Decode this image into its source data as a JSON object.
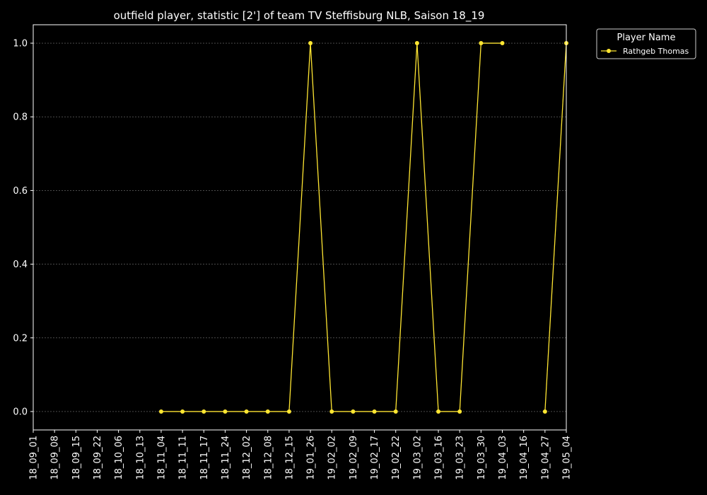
{
  "chart_data": {
    "type": "line",
    "title": "outfield player, statistic [2'] of team TV Steffisburg NLB, Saison 18_19",
    "xlabel": "",
    "ylabel": "",
    "ylim": [
      -0.05,
      1.05
    ],
    "y_ticks": [
      0.0,
      0.2,
      0.4,
      0.6,
      0.8,
      1.0
    ],
    "y_tick_labels": [
      "0.0",
      "0.2",
      "0.4",
      "0.6",
      "0.8",
      "1.0"
    ],
    "grid": true,
    "legend": {
      "title": "Player Name",
      "placement": "outside-top-right"
    },
    "categories": [
      "18_09_01",
      "18_09_08",
      "18_09_15",
      "18_09_22",
      "18_10_06",
      "18_10_13",
      "18_11_04",
      "18_11_11",
      "18_11_17",
      "18_11_24",
      "18_12_02",
      "18_12_08",
      "18_12_15",
      "19_01_26",
      "19_02_02",
      "19_02_09",
      "19_02_17",
      "19_02_22",
      "19_03_02",
      "19_03_16",
      "19_03_23",
      "19_03_30",
      "19_04_03",
      "19_04_16",
      "19_04_27",
      "19_05_04"
    ],
    "series": [
      {
        "name": "Rathgeb Thomas",
        "color": "#ffe632",
        "values": [
          null,
          null,
          null,
          null,
          null,
          null,
          0,
          0,
          0,
          0,
          0,
          0,
          0,
          1,
          0,
          0,
          0,
          0,
          1,
          0,
          0,
          1,
          1,
          null,
          0,
          1
        ]
      }
    ]
  }
}
